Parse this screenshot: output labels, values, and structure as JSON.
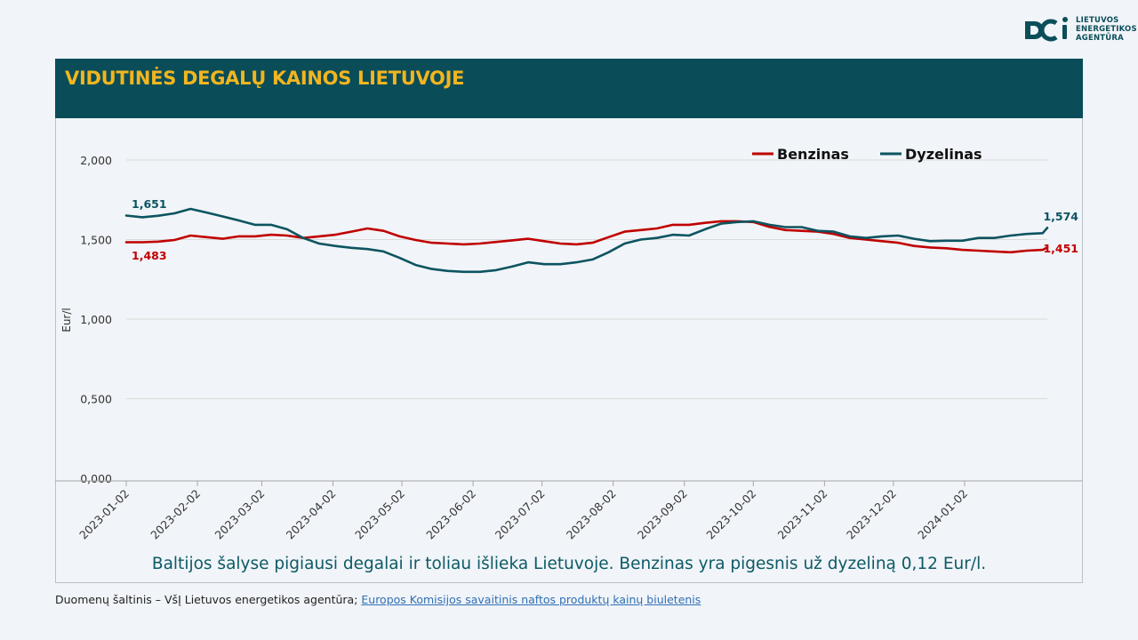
{
  "logo": {
    "lines": [
      "LIETUVOS",
      "ENERGETIKOS",
      "AGENTŪRA"
    ],
    "icon": "lea-logo-icon"
  },
  "header": {
    "title": "VIDUTINĖS DEGALŲ KAINOS LIETUVOJE"
  },
  "colors": {
    "header_bg": "#0a4d58",
    "title": "#f2b51f",
    "benzinas": "#c00000",
    "dyzelinas": "#0c5460"
  },
  "chart_data": {
    "type": "line",
    "xlabel": "",
    "ylabel": "Eur/l",
    "ylim": [
      0,
      2
    ],
    "yticks": [
      "0,000",
      "0,500",
      "1,000",
      "1,500",
      "2,000"
    ],
    "ytick_values": [
      0,
      0.5,
      1,
      1.5,
      2
    ],
    "xticks": [
      "2023-01-02",
      "2023-02-02",
      "2023-03-02",
      "2023-04-02",
      "2023-05-02",
      "2023-06-02",
      "2023-07-02",
      "2023-08-02",
      "2023-09-02",
      "2023-10-02",
      "2023-11-02",
      "2023-12-02",
      "2024-01-02"
    ],
    "grid": true,
    "legend_position": "top-right",
    "series": [
      {
        "name": "Benzinas",
        "color": "#c00000",
        "first_label": "1,483",
        "last_label": "1,451",
        "points": [
          [
            "2023-01-02",
            1.483
          ],
          [
            "2023-01-09",
            1.483
          ],
          [
            "2023-01-16",
            1.487
          ],
          [
            "2023-01-23",
            1.497
          ],
          [
            "2023-01-30",
            1.525
          ],
          [
            "2023-02-06",
            1.515
          ],
          [
            "2023-02-13",
            1.505
          ],
          [
            "2023-02-20",
            1.52
          ],
          [
            "2023-02-27",
            1.52
          ],
          [
            "2023-03-06",
            1.53
          ],
          [
            "2023-03-13",
            1.525
          ],
          [
            "2023-03-20",
            1.51
          ],
          [
            "2023-03-27",
            1.52
          ],
          [
            "2023-04-03",
            1.53
          ],
          [
            "2023-04-10",
            1.55
          ],
          [
            "2023-04-17",
            1.57
          ],
          [
            "2023-04-24",
            1.555
          ],
          [
            "2023-05-01",
            1.52
          ],
          [
            "2023-05-08",
            1.497
          ],
          [
            "2023-05-15",
            1.48
          ],
          [
            "2023-05-22",
            1.475
          ],
          [
            "2023-05-29",
            1.47
          ],
          [
            "2023-06-05",
            1.475
          ],
          [
            "2023-06-12",
            1.485
          ],
          [
            "2023-06-19",
            1.495
          ],
          [
            "2023-06-26",
            1.505
          ],
          [
            "2023-07-03",
            1.49
          ],
          [
            "2023-07-10",
            1.475
          ],
          [
            "2023-07-17",
            1.47
          ],
          [
            "2023-07-24",
            1.48
          ],
          [
            "2023-07-31",
            1.515
          ],
          [
            "2023-08-07",
            1.55
          ],
          [
            "2023-08-14",
            1.56
          ],
          [
            "2023-08-21",
            1.57
          ],
          [
            "2023-08-28",
            1.593
          ],
          [
            "2023-09-04",
            1.593
          ],
          [
            "2023-09-11",
            1.605
          ],
          [
            "2023-09-18",
            1.615
          ],
          [
            "2023-09-25",
            1.615
          ],
          [
            "2023-10-02",
            1.61
          ],
          [
            "2023-10-09",
            1.58
          ],
          [
            "2023-10-16",
            1.56
          ],
          [
            "2023-10-23",
            1.555
          ],
          [
            "2023-10-30",
            1.55
          ],
          [
            "2023-11-06",
            1.535
          ],
          [
            "2023-11-13",
            1.51
          ],
          [
            "2023-11-20",
            1.5
          ],
          [
            "2023-11-27",
            1.49
          ],
          [
            "2023-12-04",
            1.48
          ],
          [
            "2023-12-11",
            1.46
          ],
          [
            "2023-12-18",
            1.45
          ],
          [
            "2023-12-25",
            1.445
          ],
          [
            "2024-01-01",
            1.435
          ],
          [
            "2024-01-08",
            1.43
          ],
          [
            "2024-01-15",
            1.425
          ],
          [
            "2024-01-22",
            1.42
          ],
          [
            "2024-01-29",
            1.43
          ],
          [
            "2024-02-05",
            1.435
          ],
          [
            "2024-02-07",
            1.451
          ]
        ]
      },
      {
        "name": "Dyzelinas",
        "color": "#0c5460",
        "first_label": "1,651",
        "last_label": "1,574",
        "points": [
          [
            "2023-01-02",
            1.651
          ],
          [
            "2023-01-09",
            1.64
          ],
          [
            "2023-01-16",
            1.65
          ],
          [
            "2023-01-23",
            1.665
          ],
          [
            "2023-01-30",
            1.693
          ],
          [
            "2023-02-06",
            1.67
          ],
          [
            "2023-02-13",
            1.645
          ],
          [
            "2023-02-20",
            1.62
          ],
          [
            "2023-02-27",
            1.593
          ],
          [
            "2023-03-06",
            1.593
          ],
          [
            "2023-03-13",
            1.565
          ],
          [
            "2023-03-20",
            1.51
          ],
          [
            "2023-03-27",
            1.475
          ],
          [
            "2023-04-03",
            1.46
          ],
          [
            "2023-04-10",
            1.448
          ],
          [
            "2023-04-17",
            1.44
          ],
          [
            "2023-04-24",
            1.425
          ],
          [
            "2023-05-01",
            1.385
          ],
          [
            "2023-05-08",
            1.34
          ],
          [
            "2023-05-15",
            1.315
          ],
          [
            "2023-05-22",
            1.303
          ],
          [
            "2023-05-29",
            1.297
          ],
          [
            "2023-06-05",
            1.297
          ],
          [
            "2023-06-12",
            1.308
          ],
          [
            "2023-06-19",
            1.33
          ],
          [
            "2023-06-26",
            1.357
          ],
          [
            "2023-07-03",
            1.345
          ],
          [
            "2023-07-10",
            1.345
          ],
          [
            "2023-07-17",
            1.357
          ],
          [
            "2023-07-24",
            1.375
          ],
          [
            "2023-07-31",
            1.42
          ],
          [
            "2023-08-07",
            1.475
          ],
          [
            "2023-08-14",
            1.5
          ],
          [
            "2023-08-21",
            1.51
          ],
          [
            "2023-08-28",
            1.53
          ],
          [
            "2023-09-04",
            1.525
          ],
          [
            "2023-09-11",
            1.565
          ],
          [
            "2023-09-18",
            1.6
          ],
          [
            "2023-09-25",
            1.61
          ],
          [
            "2023-10-02",
            1.615
          ],
          [
            "2023-10-09",
            1.593
          ],
          [
            "2023-10-16",
            1.578
          ],
          [
            "2023-10-23",
            1.578
          ],
          [
            "2023-10-30",
            1.555
          ],
          [
            "2023-11-06",
            1.55
          ],
          [
            "2023-11-13",
            1.52
          ],
          [
            "2023-11-20",
            1.51
          ],
          [
            "2023-11-27",
            1.52
          ],
          [
            "2023-12-04",
            1.525
          ],
          [
            "2023-12-11",
            1.505
          ],
          [
            "2023-12-18",
            1.49
          ],
          [
            "2023-12-25",
            1.493
          ],
          [
            "2024-01-01",
            1.493
          ],
          [
            "2024-01-08",
            1.51
          ],
          [
            "2024-01-15",
            1.51
          ],
          [
            "2024-01-22",
            1.525
          ],
          [
            "2024-01-29",
            1.535
          ],
          [
            "2024-02-05",
            1.54
          ],
          [
            "2024-02-07",
            1.574
          ]
        ]
      }
    ]
  },
  "caption": "Baltijos šalyse pigiausi degalai ir toliau išlieka Lietuvoje. Benzinas yra pigesnis už dyzeliną 0,12 Eur/l.",
  "source": {
    "prefix": "Duomenų šaltinis – VšĮ Lietuvos energetikos agentūra; ",
    "link_text": "Europos Komisijos savaitinis naftos produktų kainų biuletenis"
  }
}
